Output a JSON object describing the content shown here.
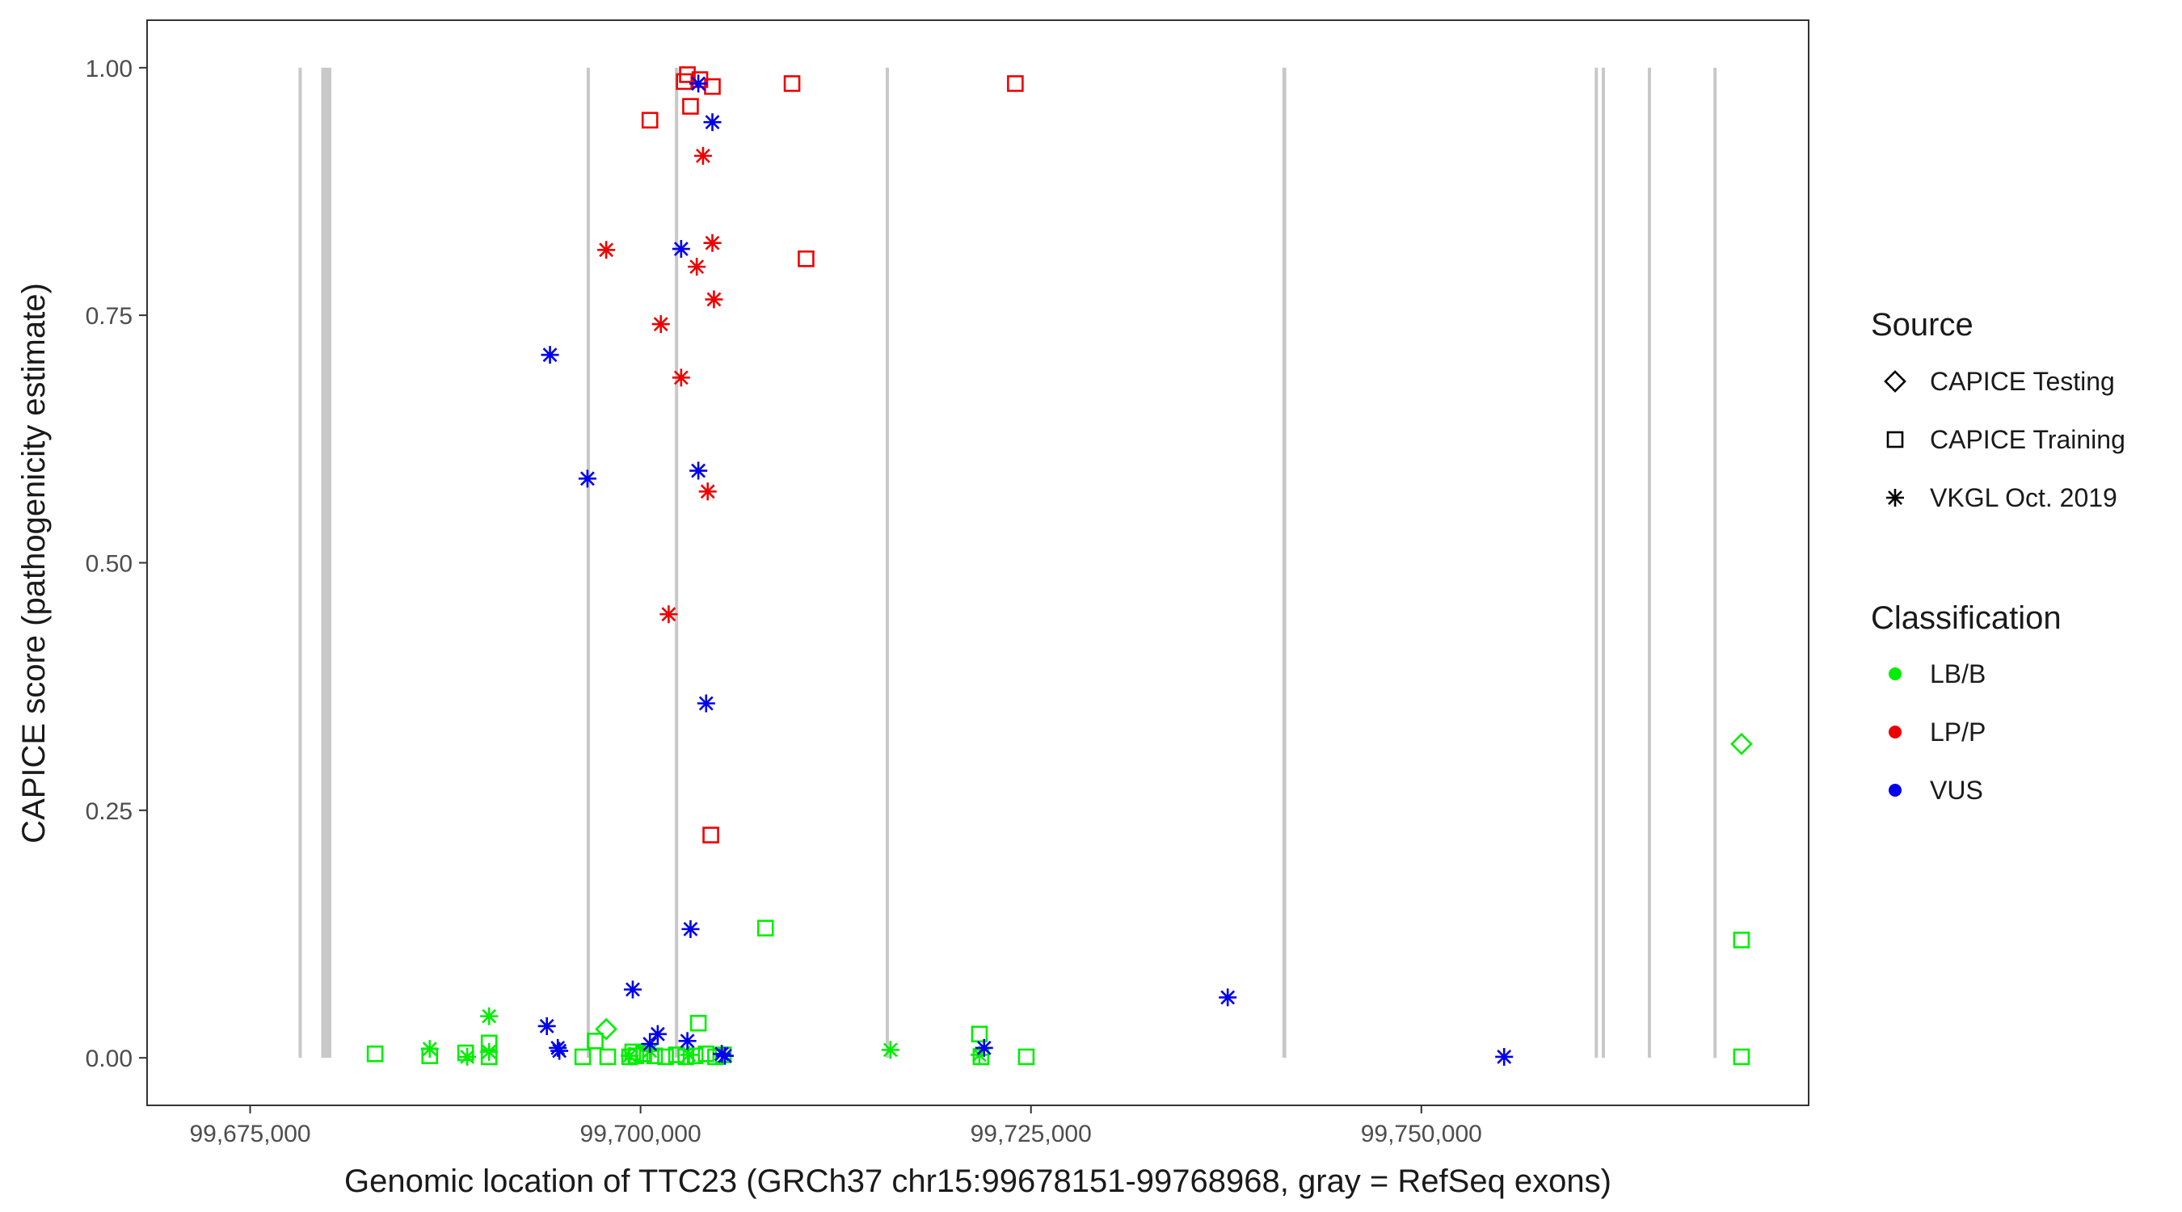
{
  "chart_data": {
    "type": "scatter",
    "title": "",
    "xlabel": "Genomic location of TTC23 (GRCh37 chr15:99678151-99768968, gray = RefSeq exons)",
    "ylabel": "CAPICE score (pathogenicity estimate)",
    "xlim": [
      99668400,
      99774800
    ],
    "ylim": [
      -0.048,
      1.048
    ],
    "x_ticks": [
      99675000,
      99700000,
      99725000,
      99750000
    ],
    "x_tick_labels": [
      "99,675,000",
      "99,700,000",
      "99,725,000",
      "99,750,000"
    ],
    "y_ticks": [
      0,
      0.25,
      0.5,
      0.75,
      1
    ],
    "y_tick_labels": [
      "0.00",
      "0.25",
      "0.50",
      "0.75",
      "1.00"
    ],
    "grid": false,
    "exons": [
      {
        "start": 99678100,
        "end": 99678250
      },
      {
        "start": 99679550,
        "end": 99680200
      },
      {
        "start": 99696550,
        "end": 99696750
      },
      {
        "start": 99702200,
        "end": 99702400
      },
      {
        "start": 99715700,
        "end": 99715900
      },
      {
        "start": 99741100,
        "end": 99741350
      },
      {
        "start": 99761100,
        "end": 99761300
      },
      {
        "start": 99761550,
        "end": 99761750
      },
      {
        "start": 99764500,
        "end": 99764700
      },
      {
        "start": 99768700,
        "end": 99768900
      }
    ],
    "legend": {
      "placement": "right",
      "source_title": "Source",
      "source_entries": [
        {
          "label": "CAPICE Testing",
          "shape": "diamond"
        },
        {
          "label": "CAPICE Training",
          "shape": "square"
        },
        {
          "label": "VKGL Oct. 2019",
          "shape": "asterisk"
        }
      ],
      "class_title": "Classification",
      "class_entries": [
        {
          "label": "LB/B",
          "color": "#00ee00"
        },
        {
          "label": "LP/P",
          "color": "#ee0000"
        },
        {
          "label": "VUS",
          "color": "#0000ee"
        }
      ]
    },
    "series": [
      {
        "name": "CAPICE Testing / LB/B",
        "shape": "diamond",
        "color": "#00ee00",
        "points": [
          {
            "x": 99697800,
            "y": 0.029
          },
          {
            "x": 99770500,
            "y": 0.317
          }
        ]
      },
      {
        "name": "CAPICE Training / LB/B",
        "shape": "square",
        "color": "#00ee00",
        "points": [
          {
            "x": 99683000,
            "y": 0.004
          },
          {
            "x": 99686500,
            "y": 0.002
          },
          {
            "x": 99688800,
            "y": 0.005
          },
          {
            "x": 99690300,
            "y": 0.015
          },
          {
            "x": 99690300,
            "y": 0.001
          },
          {
            "x": 99696300,
            "y": 0.001
          },
          {
            "x": 99697100,
            "y": 0.017
          },
          {
            "x": 99697900,
            "y": 0.001
          },
          {
            "x": 99699300,
            "y": 0.001
          },
          {
            "x": 99699500,
            "y": 0.006
          },
          {
            "x": 99699700,
            "y": 0.002
          },
          {
            "x": 99700200,
            "y": 0.004
          },
          {
            "x": 99700900,
            "y": 0.002
          },
          {
            "x": 99701600,
            "y": 0.001
          },
          {
            "x": 99702300,
            "y": 0.003
          },
          {
            "x": 99702900,
            "y": 0.001
          },
          {
            "x": 99703500,
            "y": 0.002
          },
          {
            "x": 99703700,
            "y": 0.035
          },
          {
            "x": 99704200,
            "y": 0.004
          },
          {
            "x": 99704800,
            "y": 0.001
          },
          {
            "x": 99705300,
            "y": 0.003
          },
          {
            "x": 99708000,
            "y": 0.131
          },
          {
            "x": 99721700,
            "y": 0.024
          },
          {
            "x": 99721800,
            "y": 0.001
          },
          {
            "x": 99724700,
            "y": 0.001
          },
          {
            "x": 99770500,
            "y": 0.001
          },
          {
            "x": 99770500,
            "y": 0.119
          }
        ]
      },
      {
        "name": "VKGL Oct. 2019 / LB/B",
        "shape": "asterisk",
        "color": "#00ee00",
        "points": [
          {
            "x": 99686500,
            "y": 0.009
          },
          {
            "x": 99688900,
            "y": 0.001
          },
          {
            "x": 99690300,
            "y": 0.042
          },
          {
            "x": 99690300,
            "y": 0.006
          },
          {
            "x": 99699300,
            "y": 0.002
          },
          {
            "x": 99700600,
            "y": 0.007
          },
          {
            "x": 99703100,
            "y": 0.003
          },
          {
            "x": 99716000,
            "y": 0.008
          },
          {
            "x": 99721700,
            "y": 0.003
          }
        ]
      },
      {
        "name": "CAPICE Training / LP/P",
        "shape": "square",
        "color": "#ee0000",
        "points": [
          {
            "x": 99700600,
            "y": 0.947
          },
          {
            "x": 99702800,
            "y": 0.986
          },
          {
            "x": 99703000,
            "y": 0.993
          },
          {
            "x": 99703200,
            "y": 0.961
          },
          {
            "x": 99703800,
            "y": 0.988
          },
          {
            "x": 99704600,
            "y": 0.981
          },
          {
            "x": 99709700,
            "y": 0.984
          },
          {
            "x": 99710600,
            "y": 0.807
          },
          {
            "x": 99724000,
            "y": 0.984
          },
          {
            "x": 99704500,
            "y": 0.225
          }
        ]
      },
      {
        "name": "VKGL Oct. 2019 / LP/P",
        "shape": "asterisk",
        "color": "#ee0000",
        "points": [
          {
            "x": 99697800,
            "y": 0.816
          },
          {
            "x": 99701300,
            "y": 0.741
          },
          {
            "x": 99701800,
            "y": 0.448
          },
          {
            "x": 99702600,
            "y": 0.687
          },
          {
            "x": 99703600,
            "y": 0.799
          },
          {
            "x": 99704000,
            "y": 0.911
          },
          {
            "x": 99704300,
            "y": 0.572
          },
          {
            "x": 99704600,
            "y": 0.823
          },
          {
            "x": 99704700,
            "y": 0.766
          }
        ]
      },
      {
        "name": "VKGL Oct. 2019 / VUS",
        "shape": "asterisk",
        "color": "#0000ee",
        "points": [
          {
            "x": 99694200,
            "y": 0.71
          },
          {
            "x": 99694000,
            "y": 0.032
          },
          {
            "x": 99694700,
            "y": 0.01
          },
          {
            "x": 99694800,
            "y": 0.007
          },
          {
            "x": 99696600,
            "y": 0.585
          },
          {
            "x": 99699500,
            "y": 0.069
          },
          {
            "x": 99700600,
            "y": 0.014
          },
          {
            "x": 99701100,
            "y": 0.024
          },
          {
            "x": 99702600,
            "y": 0.817
          },
          {
            "x": 99703200,
            "y": 0.13
          },
          {
            "x": 99703000,
            "y": 0.017
          },
          {
            "x": 99703700,
            "y": 0.984
          },
          {
            "x": 99703700,
            "y": 0.593
          },
          {
            "x": 99704200,
            "y": 0.358
          },
          {
            "x": 99704600,
            "y": 0.945
          },
          {
            "x": 99705200,
            "y": 0.004
          },
          {
            "x": 99705400,
            "y": 0.002
          },
          {
            "x": 99722000,
            "y": 0.01
          },
          {
            "x": 99737600,
            "y": 0.061
          },
          {
            "x": 99755300,
            "y": 0.001
          }
        ]
      }
    ]
  }
}
